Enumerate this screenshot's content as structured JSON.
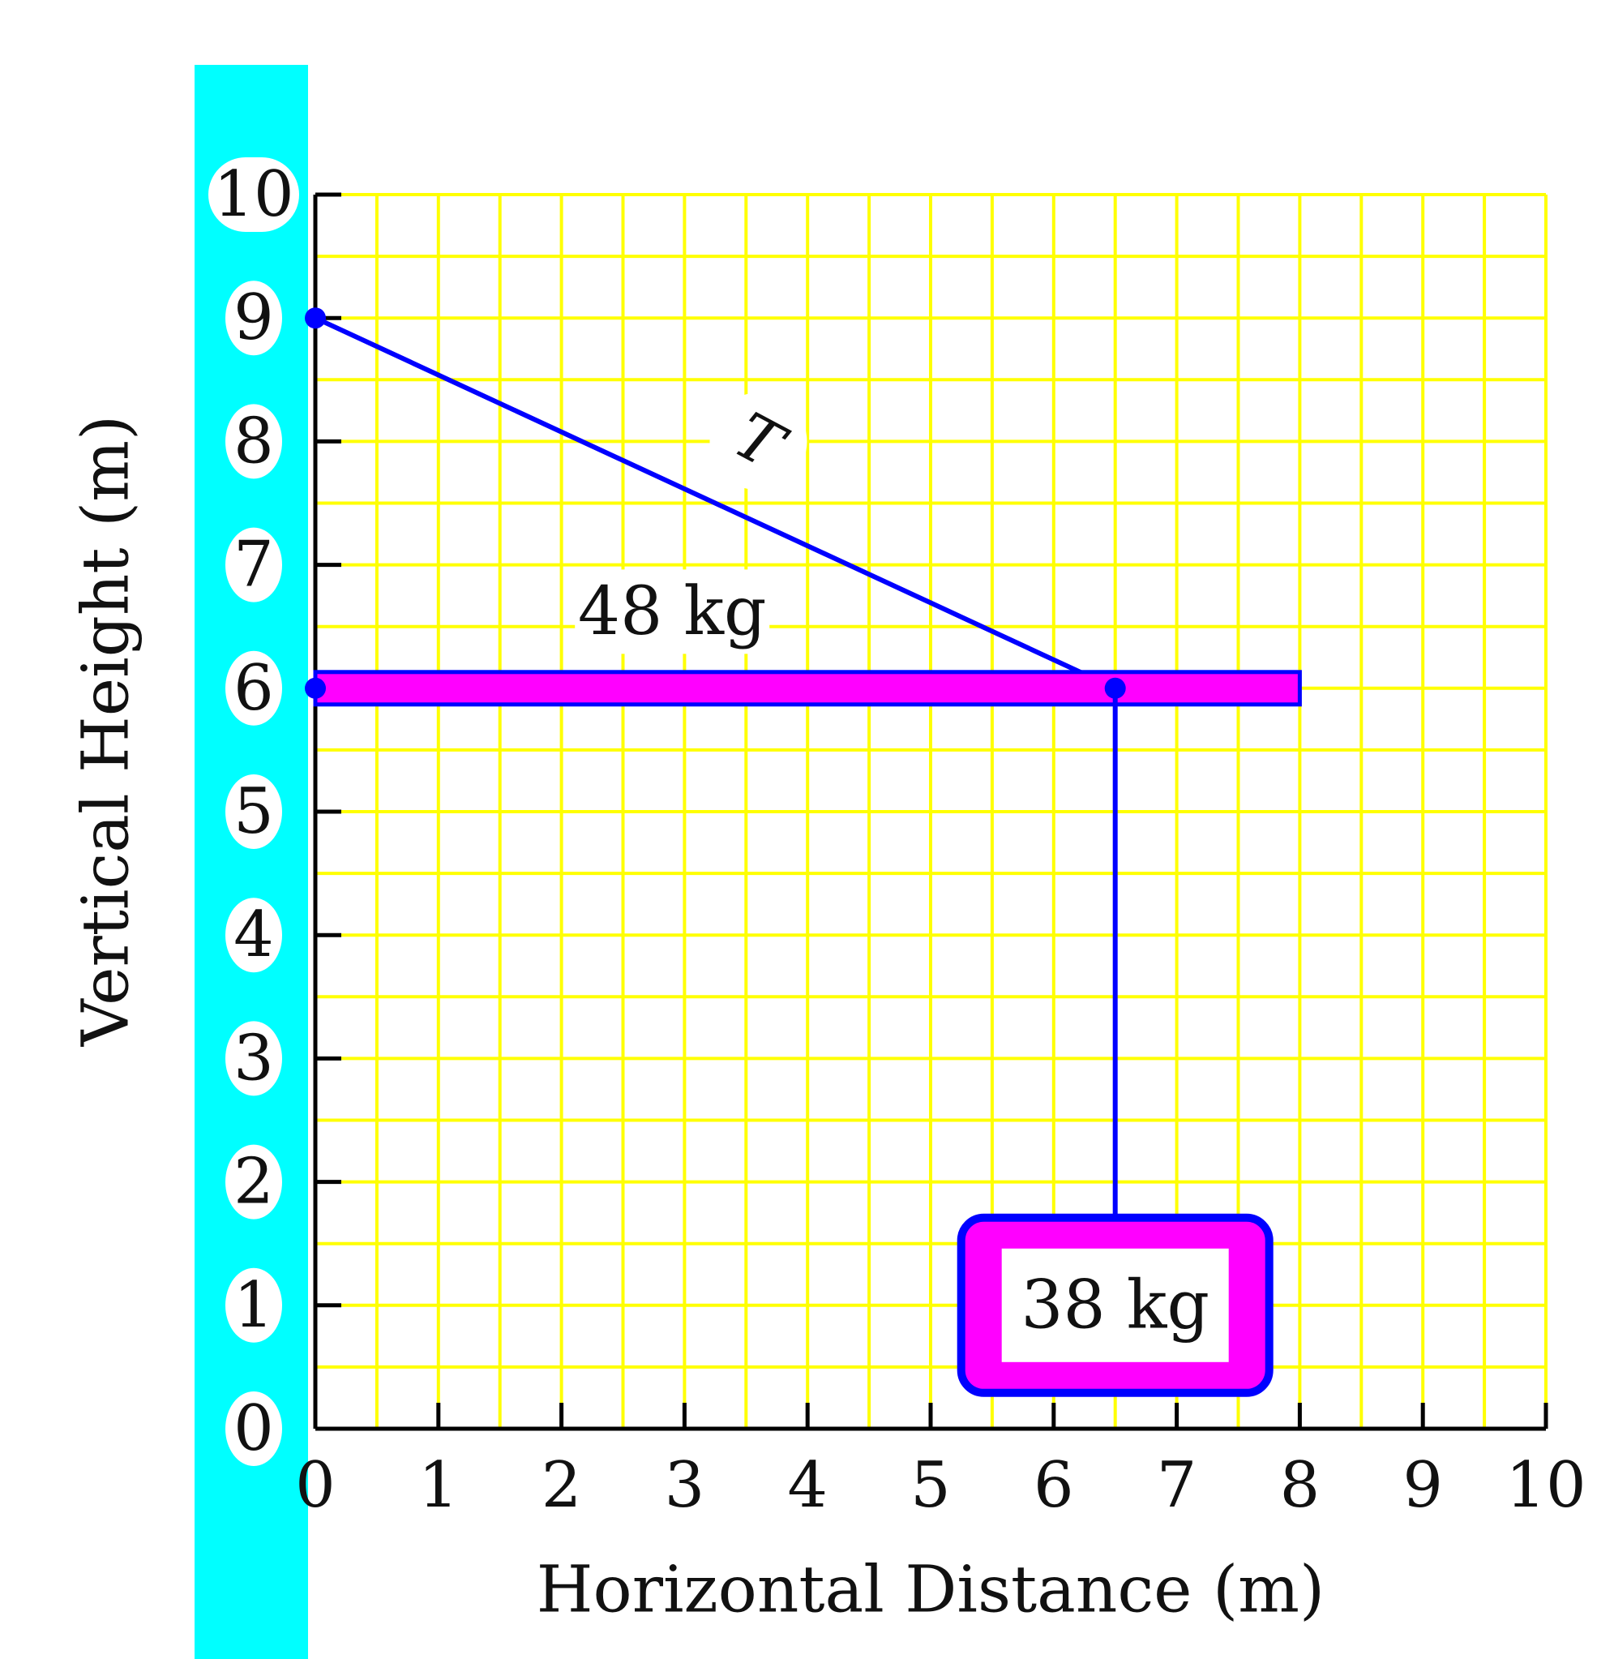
{
  "colors": {
    "wall": "#00FFFF",
    "grid": "#FFFF00",
    "axis": "#000000",
    "rope": "#0000FF",
    "beam_fill": "#FF00FF",
    "beam_stroke": "#0000FF",
    "box_fill": "#FF00FF",
    "box_stroke": "#0000FF",
    "label_bg": "#FFFFFF"
  },
  "axes": {
    "x_title": "Horizontal Distance (m)",
    "y_title": "Vertical Height (m)",
    "x_range": [
      0,
      10
    ],
    "y_range": [
      0,
      10
    ],
    "x_ticks": [
      "0",
      "1",
      "2",
      "3",
      "4",
      "5",
      "6",
      "7",
      "8",
      "9",
      "10"
    ],
    "y_ticks": [
      "0",
      "1",
      "2",
      "3",
      "4",
      "5",
      "6",
      "7",
      "8",
      "9",
      "10"
    ],
    "minor_grid_step": 0.5
  },
  "scene": {
    "wall_x": 0,
    "beam": {
      "x_start": 0,
      "x_end": 8,
      "y": 6,
      "mass_label": "48 kg"
    },
    "cable": {
      "from": [
        0,
        9
      ],
      "to": [
        6.5,
        6
      ],
      "label": "T"
    },
    "hanger": {
      "x": 6.5,
      "y_top": 6,
      "y_bottom": 1.7
    },
    "hanging_mass": {
      "x_center": 6.5,
      "y_center": 1.0,
      "label": "38 kg"
    },
    "pivot_points": [
      [
        0,
        9
      ],
      [
        0,
        6
      ],
      [
        6.5,
        6
      ]
    ]
  }
}
